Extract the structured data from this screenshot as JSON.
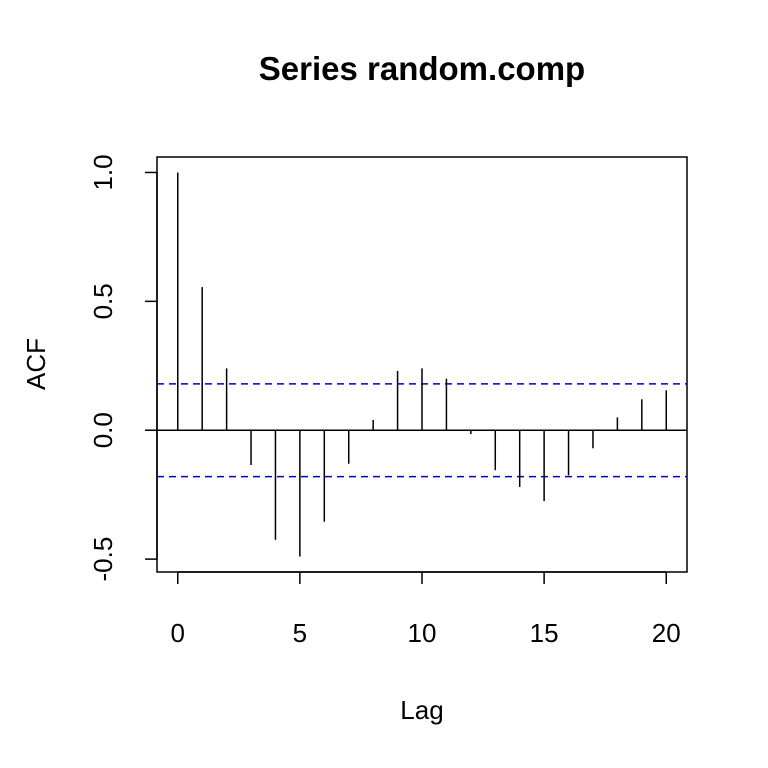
{
  "chart_data": {
    "type": "bar",
    "title": "Series  random.comp",
    "xlabel": "Lag",
    "ylabel": "ACF",
    "xlim": [
      -0.85,
      20.85
    ],
    "ylim": [
      -0.55,
      1.06
    ],
    "x_ticks": [
      0,
      5,
      10,
      15,
      20
    ],
    "y_ticks": [
      -0.5,
      0.0,
      0.5,
      1.0
    ],
    "x_tick_labels": [
      "0",
      "5",
      "10",
      "15",
      "20"
    ],
    "y_tick_labels": [
      "-0.5",
      "0.0",
      "0.5",
      "1.0"
    ],
    "lags": [
      0,
      1,
      2,
      3,
      4,
      5,
      6,
      7,
      8,
      9,
      10,
      11,
      12,
      13,
      14,
      15,
      16,
      17,
      18,
      19,
      20
    ],
    "values": [
      1.0,
      0.555,
      0.24,
      -0.135,
      -0.425,
      -0.49,
      -0.355,
      -0.13,
      0.04,
      0.23,
      0.24,
      0.2,
      -0.015,
      -0.155,
      -0.22,
      -0.275,
      -0.175,
      -0.07,
      0.05,
      0.12,
      0.155
    ],
    "confidence_bound": 0.18,
    "zero_line": true,
    "grid": false,
    "colors": {
      "bars": "#000000",
      "confidence": "#0000CD",
      "axis": "#000000"
    }
  }
}
